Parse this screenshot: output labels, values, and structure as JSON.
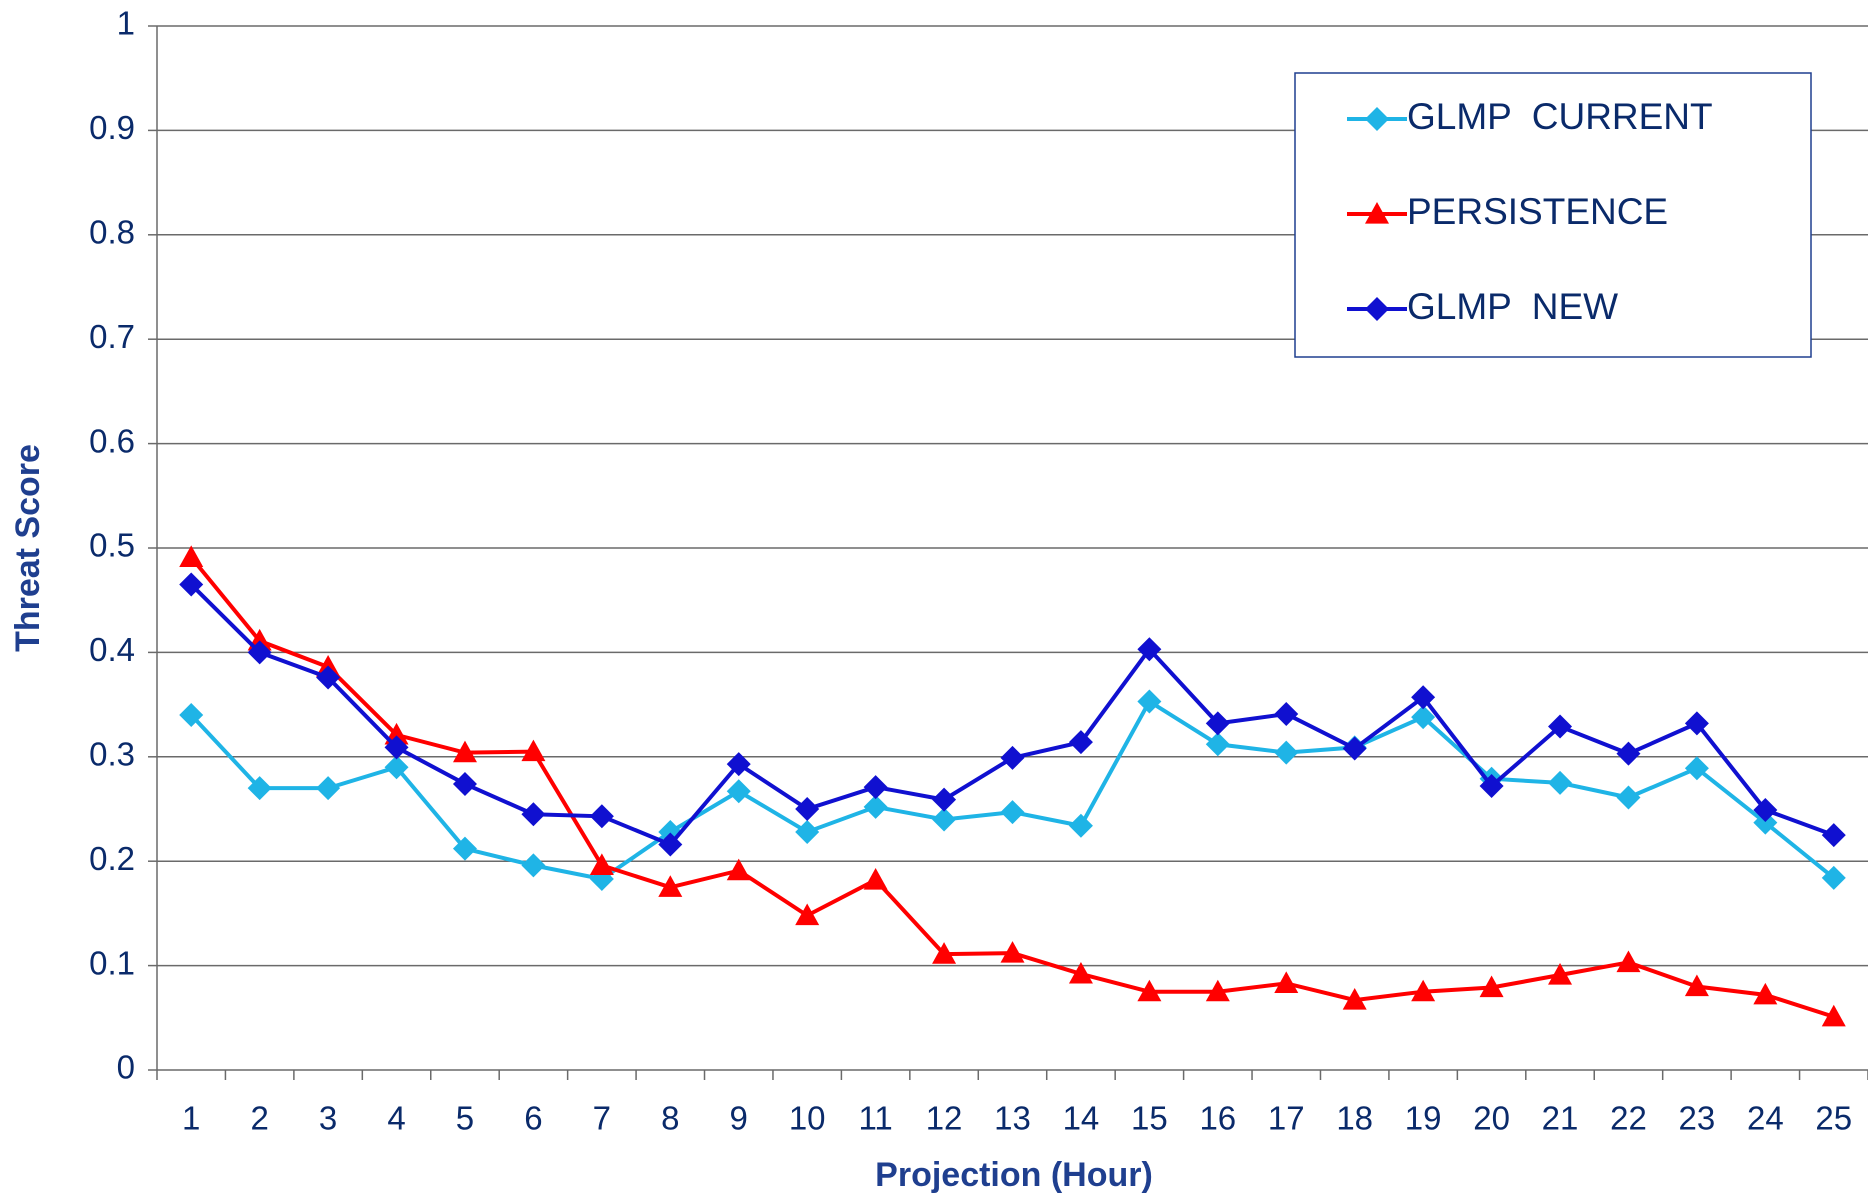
{
  "chart_data": {
    "type": "line",
    "x_label": "Projection (Hour)",
    "y_label": "Threat Score",
    "categories": [
      "1",
      "2",
      "3",
      "4",
      "5",
      "6",
      "7",
      "8",
      "9",
      "10",
      "11",
      "12",
      "13",
      "14",
      "15",
      "16",
      "17",
      "18",
      "19",
      "20",
      "21",
      "22",
      "23",
      "24",
      "25"
    ],
    "series": [
      {
        "name": "GLMP  CURRENT",
        "color": "#1fb4e6",
        "marker": "diamond",
        "values": [
          0.34,
          0.27,
          0.27,
          0.29,
          0.212,
          0.196,
          0.183,
          0.228,
          0.267,
          0.228,
          0.252,
          0.24,
          0.247,
          0.234,
          0.353,
          0.312,
          0.304,
          0.309,
          0.338,
          0.279,
          0.275,
          0.261,
          0.289,
          0.237,
          0.184
        ]
      },
      {
        "name": "PERSISTENCE",
        "color": "#ff0000",
        "marker": "triangle",
        "values": [
          0.491,
          0.411,
          0.386,
          0.321,
          0.304,
          0.305,
          0.196,
          0.175,
          0.191,
          0.148,
          0.182,
          0.111,
          0.112,
          0.092,
          0.075,
          0.075,
          0.083,
          0.067,
          0.075,
          0.079,
          0.091,
          0.103,
          0.08,
          0.072,
          0.051
        ]
      },
      {
        "name": "GLMP  NEW",
        "color": "#1010d0",
        "marker": "diamond",
        "values": [
          0.465,
          0.4,
          0.376,
          0.309,
          0.274,
          0.245,
          0.243,
          0.216,
          0.293,
          0.25,
          0.271,
          0.259,
          0.299,
          0.314,
          0.403,
          0.332,
          0.341,
          0.308,
          0.357,
          0.272,
          0.329,
          0.303,
          0.332,
          0.249,
          0.225
        ]
      }
    ],
    "ylim": [
      0,
      1
    ],
    "yticks": [
      0,
      0.1,
      0.2,
      0.3,
      0.4,
      0.5,
      0.6,
      0.7,
      0.8,
      0.9,
      1
    ],
    "grid": true,
    "legend": "top-right"
  }
}
